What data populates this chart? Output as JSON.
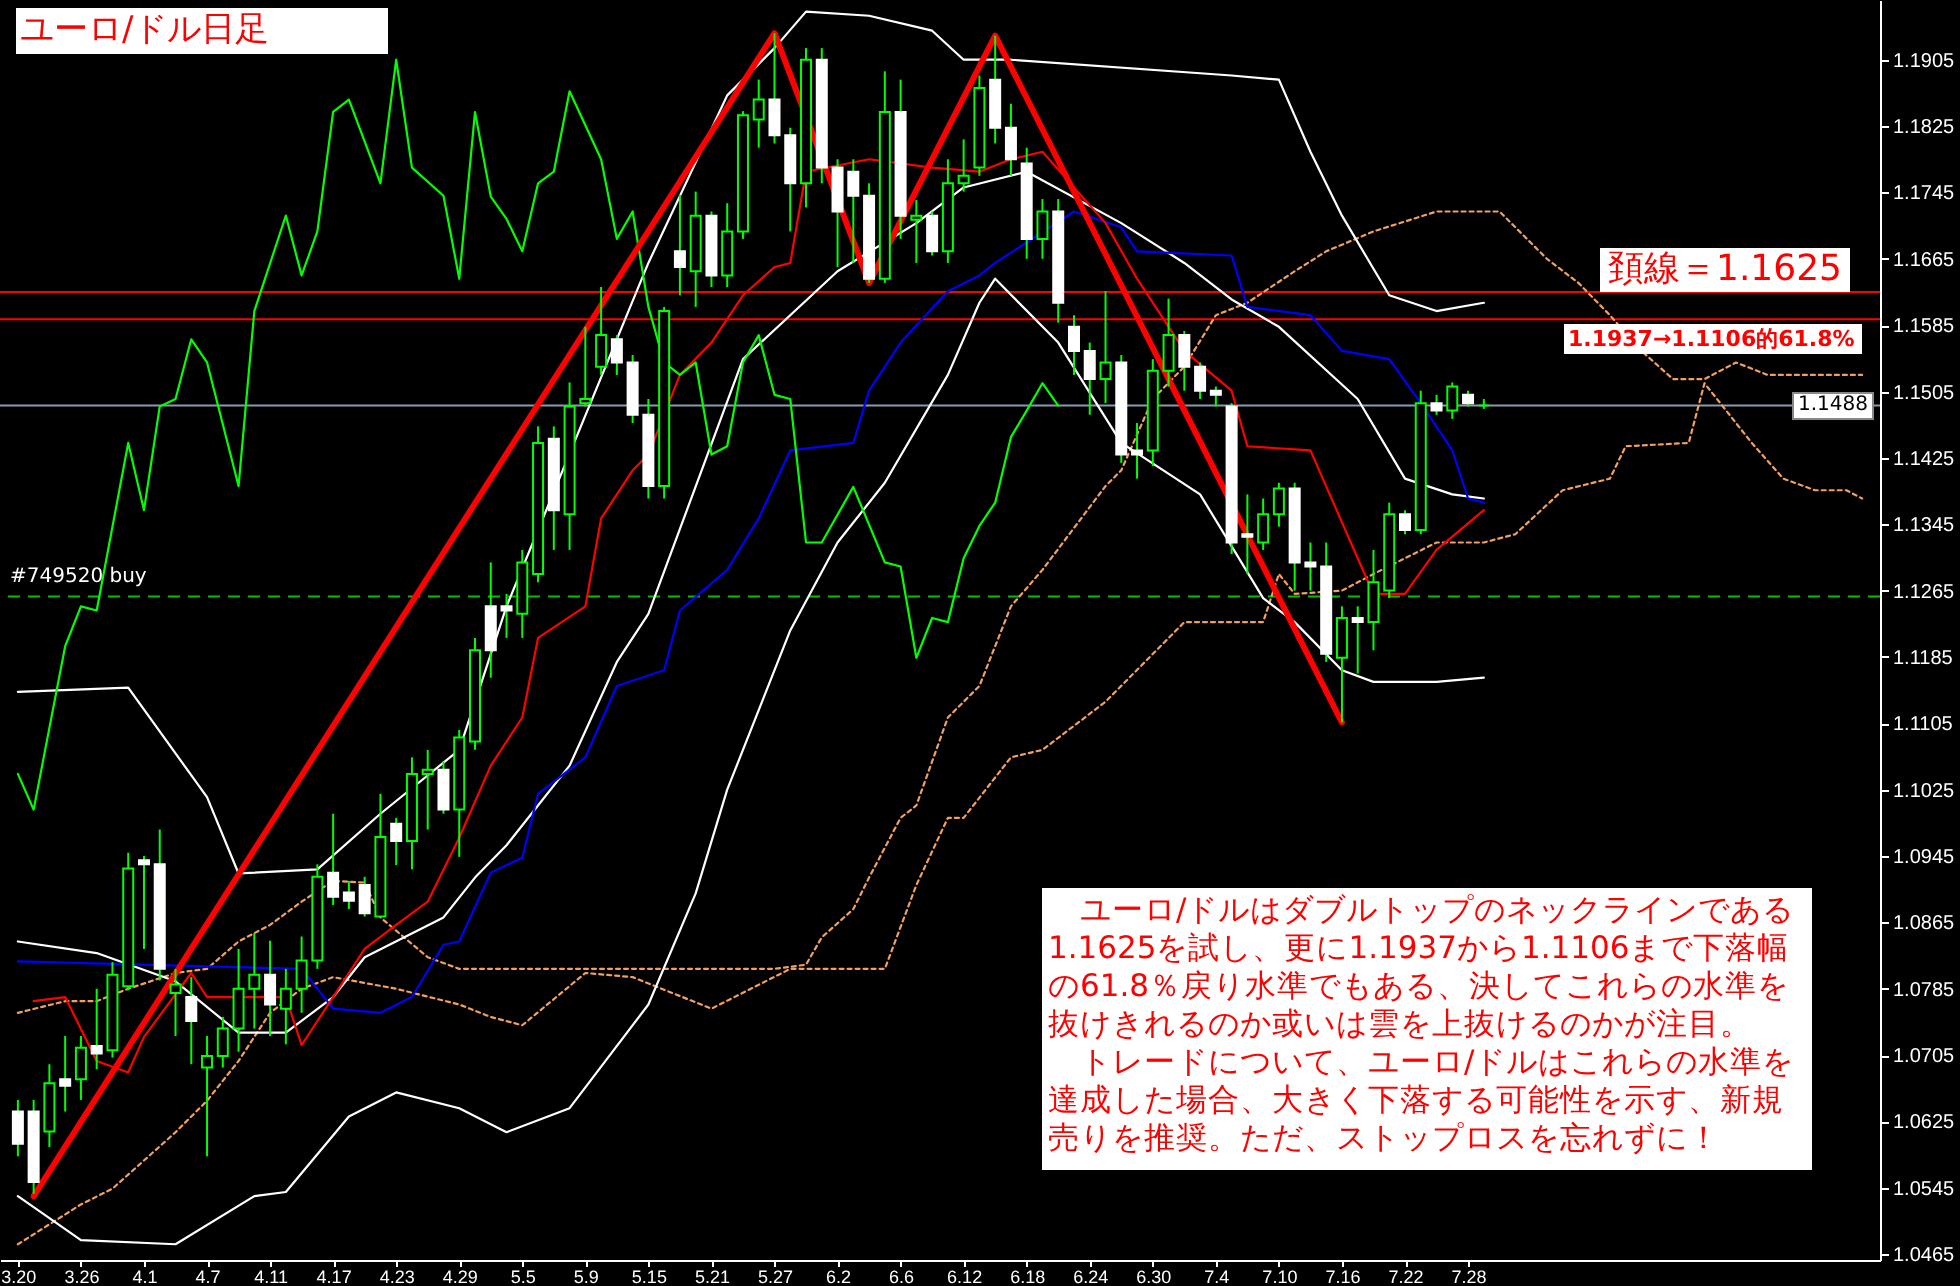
{
  "chart_data": {
    "type": "candlestick",
    "title": "ユーロ/ドル日足",
    "categories": [
      "3.20",
      null,
      null,
      null,
      "3.26",
      null,
      null,
      null,
      "4.1",
      null,
      null,
      null,
      "4.7",
      null,
      null,
      null,
      "4.11",
      null,
      null,
      null,
      "4.17",
      null,
      null,
      null,
      "4.23",
      null,
      null,
      null,
      "4.29",
      null,
      null,
      null,
      "5.5",
      null,
      null,
      null,
      "5.9",
      null,
      null,
      null,
      "5.15",
      null,
      null,
      null,
      "5.21",
      null,
      null,
      null,
      "5.27",
      null,
      null,
      null,
      "6.2",
      null,
      null,
      null,
      "6.6",
      null,
      null,
      null,
      "6.12",
      null,
      null,
      null,
      "6.18",
      null,
      null,
      null,
      "6.24",
      null,
      null,
      null,
      "6.30",
      null,
      null,
      null,
      "7.4",
      null,
      null,
      null,
      "7.10",
      null,
      null,
      null,
      "7.16",
      null,
      null,
      null,
      "7.22",
      null,
      null,
      null,
      "7.28",
      null,
      null,
      null,
      null,
      null,
      null,
      null,
      null,
      null,
      null,
      null,
      null,
      null,
      null,
      null,
      null,
      null,
      null,
      null,
      null,
      null,
      null,
      null,
      null,
      null
    ],
    "ohlc": [
      [
        1.0637,
        1.0651,
        1.0583,
        1.0598
      ],
      [
        1.0637,
        1.0651,
        1.0538,
        1.0552
      ],
      [
        1.0613,
        1.0694,
        1.0594,
        1.0671
      ],
      [
        1.0676,
        1.0728,
        1.0637,
        1.0668
      ],
      [
        1.0676,
        1.0728,
        1.0651,
        1.0714
      ],
      [
        1.0716,
        1.0785,
        1.0688,
        1.0707
      ],
      [
        1.0711,
        1.0817,
        1.0702,
        1.0802
      ],
      [
        1.0788,
        1.0949,
        1.0783,
        1.093
      ],
      [
        1.094,
        1.0945,
        1.0833,
        1.0935
      ],
      [
        1.0935,
        1.0977,
        1.0795,
        1.0809
      ],
      [
        1.078,
        1.0809,
        1.0728,
        1.079
      ],
      [
        1.0775,
        1.0799,
        1.0694,
        1.0746
      ],
      [
        1.069,
        1.0728,
        1.0583,
        1.0704
      ],
      [
        1.0704,
        1.0751,
        1.069,
        1.0737
      ],
      [
        1.0737,
        1.0833,
        1.0709,
        1.0785
      ],
      [
        1.0785,
        1.0852,
        1.0737,
        1.0802
      ],
      [
        1.0802,
        1.0843,
        1.0728,
        1.0766
      ],
      [
        1.0761,
        1.0809,
        1.0718,
        1.0785
      ],
      [
        1.0785,
        1.0848,
        1.0756,
        1.0819
      ],
      [
        1.0819,
        1.0935,
        1.0809,
        1.092
      ],
      [
        1.0925,
        1.0996,
        1.0886,
        1.0896
      ],
      [
        1.0901,
        1.0915,
        1.0881,
        1.0891
      ],
      [
        1.091,
        1.092,
        1.0872,
        1.0876
      ],
      [
        1.0872,
        1.102,
        1.0872,
        1.0968
      ],
      [
        1.0984,
        1.0991,
        1.0934,
        1.0963
      ],
      [
        1.0963,
        1.1064,
        1.0929,
        1.1044
      ],
      [
        1.1044,
        1.1073,
        1.0977,
        1.1049
      ],
      [
        1.1049,
        1.1059,
        1.0996,
        1.1001
      ],
      [
        1.1001,
        1.1097,
        1.0944,
        1.1088
      ],
      [
        1.1083,
        1.1208,
        1.1073,
        1.1193
      ],
      [
        1.1246,
        1.1299,
        1.116,
        1.1193
      ],
      [
        1.1246,
        1.1261,
        1.1208,
        1.1241
      ],
      [
        1.1237,
        1.1314,
        1.1208,
        1.1299
      ],
      [
        1.1285,
        1.1463,
        1.1275,
        1.1443
      ],
      [
        1.1448,
        1.1463,
        1.1314,
        1.1362
      ],
      [
        1.1357,
        1.1516,
        1.1314,
        1.1487
      ],
      [
        1.1491,
        1.1583,
        1.1487,
        1.1496
      ],
      [
        1.1535,
        1.1631,
        1.1525,
        1.1573
      ],
      [
        1.1568,
        1.1573,
        1.1525,
        1.154
      ],
      [
        1.154,
        1.1549,
        1.1467,
        1.1477
      ],
      [
        1.1477,
        1.1496,
        1.1376,
        1.1391
      ],
      [
        1.1391,
        1.1607,
        1.1376,
        1.1602
      ],
      [
        1.1674,
        1.1742,
        1.1621,
        1.1655
      ],
      [
        1.165,
        1.1746,
        1.1607,
        1.1717
      ],
      [
        1.1717,
        1.1722,
        1.1631,
        1.1645
      ],
      [
        1.1645,
        1.1732,
        1.1631,
        1.1698
      ],
      [
        1.1698,
        1.1843,
        1.1689,
        1.1838
      ],
      [
        1.1833,
        1.1881,
        1.1799,
        1.1857
      ],
      [
        1.1857,
        1.1937,
        1.1804,
        1.1814
      ],
      [
        1.1814,
        1.1823,
        1.1698,
        1.1756
      ],
      [
        1.1756,
        1.1919,
        1.1727,
        1.1905
      ],
      [
        1.1905,
        1.1919,
        1.1756,
        1.1775
      ],
      [
        1.1775,
        1.1785,
        1.1655,
        1.1722
      ],
      [
        1.177,
        1.1785,
        1.166,
        1.1741
      ],
      [
        1.1741,
        1.1756,
        1.1636,
        1.1641
      ],
      [
        1.1641,
        1.1891,
        1.1636,
        1.1842
      ],
      [
        1.1842,
        1.1881,
        1.1689,
        1.1717
      ],
      [
        1.1712,
        1.1736,
        1.166,
        1.1717
      ],
      [
        1.1717,
        1.1722,
        1.1669,
        1.1674
      ],
      [
        1.1674,
        1.1785,
        1.166,
        1.1756
      ],
      [
        1.1756,
        1.1809,
        1.1746,
        1.1765
      ],
      [
        1.1775,
        1.1886,
        1.1765,
        1.1871
      ],
      [
        1.1881,
        1.1934,
        1.1804,
        1.1823
      ],
      [
        1.1823,
        1.1852,
        1.1765,
        1.1785
      ],
      [
        1.178,
        1.1799,
        1.1665,
        1.1689
      ],
      [
        1.1689,
        1.1737,
        1.1665,
        1.1722
      ],
      [
        1.1722,
        1.1737,
        1.1588,
        1.1612
      ],
      [
        1.1583,
        1.1597,
        1.1525,
        1.1554
      ],
      [
        1.1554,
        1.1564,
        1.1477,
        1.152
      ],
      [
        1.152,
        1.1626,
        1.1491,
        1.154
      ],
      [
        1.154,
        1.1549,
        1.1419,
        1.1429
      ],
      [
        1.1434,
        1.1467,
        1.14,
        1.1429
      ],
      [
        1.1434,
        1.1544,
        1.1415,
        1.153
      ],
      [
        1.153,
        1.1617,
        1.1511,
        1.1573
      ],
      [
        1.1573,
        1.1578,
        1.1506,
        1.1535
      ],
      [
        1.1535,
        1.154,
        1.1496,
        1.1506
      ],
      [
        1.1506,
        1.1511,
        1.1487,
        1.1501
      ],
      [
        1.1487,
        1.1491,
        1.1309,
        1.1323
      ],
      [
        1.1333,
        1.1381,
        1.1285,
        1.133
      ],
      [
        1.1323,
        1.1376,
        1.1314,
        1.1357
      ],
      [
        1.1357,
        1.1395,
        1.1342,
        1.1388
      ],
      [
        1.1388,
        1.1395,
        1.1265,
        1.1299
      ],
      [
        1.1299,
        1.1323,
        1.1265,
        1.1294
      ],
      [
        1.1294,
        1.1323,
        1.1179,
        1.1189
      ],
      [
        1.1184,
        1.1246,
        1.1106,
        1.1232
      ],
      [
        1.1232,
        1.1246,
        1.1165,
        1.1227
      ],
      [
        1.1227,
        1.1314,
        1.1193,
        1.1275
      ],
      [
        1.1265,
        1.1371,
        1.1256,
        1.1357
      ],
      [
        1.1357,
        1.1362,
        1.1333,
        1.1338
      ],
      [
        1.1338,
        1.1506,
        1.1333,
        1.1491
      ],
      [
        1.1491,
        1.1501,
        1.1477,
        1.1482
      ],
      [
        1.1482,
        1.1516,
        1.1472,
        1.1511
      ],
      [
        1.1501,
        1.1506,
        1.1487,
        1.1491
      ],
      [
        1.1488,
        1.1496,
        1.1484,
        1.1488
      ],
      null,
      null,
      null,
      null,
      null,
      null,
      null,
      null,
      null,
      null,
      null,
      null,
      null,
      null,
      null,
      null,
      null,
      null,
      null,
      null,
      null,
      null,
      null,
      null
    ],
    "series": [
      {
        "type": "line",
        "color": "#f0a060",
        "line_style": "dotted",
        "values": [
          1.0756,
          null,
          null,
          1.077,
          null,
          1.077,
          null,
          1.0785,
          null,
          null,
          1.0804,
          null,
          1.0809,
          null,
          1.0842,
          null,
          1.0862,
          null,
          1.089,
          null,
          1.0915,
          null,
          1.0913,
          1.0871,
          null,
          null,
          1.0823,
          null,
          1.0809,
          null,
          null,
          1.0809,
          null,
          null,
          null,
          null,
          null,
          null,
          null,
          null,
          null,
          null,
          null,
          null,
          null,
          null,
          null,
          null,
          1.0809,
          null,
          1.0814,
          1.0847,
          null,
          1.0881,
          1.0919,
          null,
          1.0991,
          1.1006,
          null,
          1.1112,
          null,
          1.115,
          null,
          1.1246,
          null,
          1.129,
          null,
          null,
          null,
          1.1391,
          1.141,
          null,
          1.1496,
          null,
          1.1535,
          null,
          1.1597,
          null,
          1.1612,
          null,
          null,
          1.165,
          null,
          1.1674,
          null,
          null,
          1.1698,
          null,
          null,
          null,
          1.1722,
          null,
          null,
          null,
          1.1722,
          1.1703,
          null,
          1.1665,
          null,
          1.1636,
          null,
          1.1597,
          null,
          1.1554,
          null,
          1.152,
          null,
          1.152,
          null,
          1.154,
          null,
          1.1525,
          null,
          null,
          null,
          null,
          null,
          1.1525
        ]
      },
      {
        "type": "line",
        "color": "#f0a060",
        "line_style": "dotted",
        "values": [
          1.0477,
          null,
          null,
          null,
          1.0525,
          null,
          1.0544,
          null,
          null,
          null,
          1.0612,
          null,
          1.065,
          null,
          1.0698,
          null,
          1.0756,
          null,
          1.0785,
          null,
          1.0799,
          null,
          null,
          null,
          1.0785,
          null,
          null,
          null,
          1.0766,
          null,
          1.0751,
          null,
          1.0741,
          null,
          null,
          null,
          1.0804,
          null,
          null,
          1.0799,
          null,
          null,
          null,
          null,
          1.0761,
          null,
          null,
          null,
          null,
          1.0809,
          null,
          null,
          null,
          null,
          null,
          1.0809,
          null,
          1.091,
          null,
          1.0991,
          1.0991,
          null,
          null,
          1.1064,
          null,
          1.1073,
          null,
          null,
          null,
          1.1131,
          null,
          null,
          null,
          null,
          1.1227,
          null,
          null,
          null,
          null,
          1.1227,
          1.1285,
          1.1261,
          null,
          null,
          1.1265,
          null,
          1.1285,
          null,
          1.1304,
          null,
          1.1323,
          null,
          null,
          1.1323,
          null,
          1.1333,
          null,
          null,
          1.1386,
          null,
          null,
          1.14,
          1.1439,
          null,
          null,
          null,
          1.1443,
          1.1515,
          null,
          null,
          1.1443,
          null,
          1.14,
          null,
          1.1386,
          null,
          1.1386,
          1.1376
        ]
      },
      {
        "type": "line",
        "color": "#ffffff",
        "values": [
          1.1143,
          null,
          null,
          null,
          null,
          null,
          null,
          1.1148,
          null,
          null,
          null,
          null,
          1.1016,
          null,
          1.0924,
          null,
          null,
          null,
          null,
          1.0929,
          null,
          null,
          null,
          1.0996,
          null,
          null,
          null,
          null,
          1.1073,
          null,
          null,
          1.1246,
          null,
          null,
          null,
          null,
          null,
          null,
          null,
          null,
          1.166,
          null,
          null,
          null,
          null,
          1.1862,
          null,
          null,
          1.1919,
          null,
          1.1963,
          null,
          null,
          null,
          1.1958,
          null,
          null,
          null,
          1.194,
          null,
          1.1905,
          null,
          null,
          1.1905,
          null,
          null,
          null,
          null,
          null,
          null,
          null,
          null,
          null,
          null,
          null,
          null,
          null,
          1.1886,
          null,
          null,
          1.1881,
          null,
          1.1794,
          null,
          1.1717,
          null,
          null,
          1.1621,
          null,
          null,
          1.1602,
          null,
          null,
          1.1612,
          null,
          null,
          null,
          null,
          null,
          null,
          null,
          null,
          null,
          null,
          null,
          null,
          null,
          null,
          null,
          null,
          null,
          null,
          null,
          null,
          null,
          null,
          null,
          null
        ]
      },
      {
        "type": "line",
        "color": "#ffffff",
        "values": [
          1.0842,
          null,
          null,
          null,
          null,
          1.0828,
          null,
          null,
          null,
          null,
          1.0794,
          null,
          null,
          null,
          1.0732,
          null,
          null,
          1.0732,
          null,
          null,
          1.0775,
          null,
          1.0823,
          null,
          null,
          null,
          null,
          1.0871,
          null,
          1.0919,
          null,
          1.0958,
          null,
          null,
          null,
          1.1054,
          null,
          null,
          1.1179,
          null,
          1.1237,
          null,
          null,
          null,
          null,
          null,
          1.1544,
          null,
          null,
          null,
          null,
          null,
          1.165,
          null,
          null,
          null,
          null,
          1.1708,
          null,
          null,
          1.1751,
          null,
          null,
          null,
          1.177,
          null,
          null,
          null,
          null,
          null,
          1.1708,
          null,
          null,
          null,
          1.166,
          null,
          null,
          1.1616,
          null,
          null,
          1.1583,
          null,
          null,
          null,
          null,
          1.1496,
          null,
          null,
          1.14,
          null,
          null,
          1.1381,
          null,
          1.1376,
          null,
          null,
          null,
          null,
          null,
          null,
          null,
          null,
          null,
          null,
          null,
          null,
          null,
          null,
          null,
          null,
          null,
          null,
          null,
          null,
          null,
          null,
          null,
          null
        ]
      },
      {
        "type": "line",
        "color": "#ffffff",
        "values": [
          1.0535,
          null,
          null,
          null,
          1.0482,
          null,
          null,
          null,
          null,
          null,
          1.0477,
          null,
          null,
          null,
          null,
          1.0535,
          null,
          1.054,
          null,
          null,
          null,
          1.0631,
          null,
          null,
          1.066,
          null,
          null,
          null,
          1.0641,
          null,
          null,
          1.0612,
          null,
          null,
          null,
          1.0641,
          null,
          null,
          null,
          null,
          1.0766,
          null,
          null,
          1.09,
          null,
          1.1025,
          null,
          null,
          null,
          1.1217,
          null,
          null,
          1.1323,
          null,
          null,
          1.1395,
          null,
          null,
          null,
          1.1525,
          null,
          1.1612,
          1.1641,
          null,
          null,
          null,
          1.1564,
          null,
          null,
          null,
          1.1443,
          null,
          null,
          null,
          null,
          1.1381,
          null,
          null,
          null,
          1.1256,
          null,
          1.1227,
          null,
          null,
          1.1169,
          null,
          1.1155,
          null,
          null,
          null,
          1.1155,
          null,
          null,
          1.116,
          null,
          null,
          null,
          null,
          null,
          null,
          null,
          null,
          null,
          null,
          null,
          null,
          null,
          null,
          null,
          null,
          null,
          null,
          null,
          null,
          null,
          null,
          null,
          null
        ]
      },
      {
        "type": "line",
        "color": "#0000ff",
        "values": [
          1.0818,
          null,
          null,
          null,
          null,
          null,
          null,
          null,
          null,
          null,
          null,
          null,
          null,
          null,
          null,
          null,
          null,
          null,
          1.0809,
          null,
          1.0761,
          null,
          null,
          1.0756,
          null,
          1.0775,
          null,
          1.0838,
          1.0842,
          null,
          1.0925,
          null,
          1.0943,
          1.102,
          null,
          null,
          1.1064,
          null,
          1.115,
          null,
          null,
          1.1169,
          1.1241,
          null,
          null,
          1.129,
          null,
          1.1352,
          null,
          1.1434,
          null,
          null,
          null,
          1.1443,
          1.1506,
          null,
          1.1564,
          null,
          null,
          1.1626,
          null,
          1.1645,
          1.166,
          null,
          null,
          null,
          null,
          1.1722,
          null,
          null,
          1.1703,
          1.1674,
          null,
          null,
          null,
          null,
          null,
          1.1669,
          1.1607,
          null,
          null,
          null,
          1.1597,
          null,
          1.1554,
          null,
          null,
          1.1544,
          null,
          1.1491,
          null,
          1.1434,
          1.1376,
          1.1371,
          null,
          null,
          null,
          null,
          null,
          null,
          null,
          null,
          null,
          null,
          null,
          null,
          null,
          null,
          null,
          null,
          null,
          null,
          null,
          null,
          null,
          null,
          null,
          null
        ]
      },
      {
        "type": "line",
        "color": "#ff0000",
        "values": [
          null,
          1.077,
          null,
          1.0775,
          null,
          1.0698,
          null,
          1.0684,
          1.0727,
          null,
          null,
          1.0804,
          1.0775,
          null,
          null,
          null,
          null,
          1.0775,
          1.0717,
          null,
          1.0775,
          null,
          1.0833,
          null,
          1.0862,
          null,
          1.089,
          null,
          1.0967,
          null,
          1.1054,
          1.1083,
          1.1112,
          1.1208,
          null,
          null,
          1.1246,
          1.1352,
          null,
          1.141,
          1.1429,
          null,
          1.1525,
          null,
          1.1564,
          null,
          1.1621,
          null,
          1.1655,
          1.166,
          1.177,
          null,
          null,
          null,
          1.1785,
          null,
          null,
          null,
          1.1775,
          null,
          null,
          1.177,
          null,
          1.1785,
          null,
          1.1794,
          null,
          null,
          null,
          1.1708,
          null,
          1.1641,
          null,
          null,
          1.1554,
          null,
          null,
          1.1506,
          1.1439,
          null,
          null,
          null,
          1.1434,
          null,
          null,
          1.1304,
          1.1261,
          null,
          1.1261,
          null,
          1.1314,
          null,
          null,
          1.1362,
          null,
          null,
          null,
          null,
          null,
          null,
          null,
          null,
          null,
          null,
          null,
          null,
          null,
          null,
          null,
          null,
          null,
          null,
          null,
          null,
          null,
          null,
          null,
          null
        ]
      },
      {
        "type": "line",
        "color": "#00ff00",
        "values": [
          1.1044,
          1.1001,
          null,
          1.1198,
          1.1246,
          1.1241,
          null,
          1.1443,
          1.1362,
          1.1487,
          1.1496,
          1.1568,
          1.154,
          null,
          1.1391,
          1.1602,
          null,
          1.1717,
          1.1645,
          1.1698,
          1.1842,
          1.1857,
          null,
          1.1756,
          1.1905,
          1.1775,
          null,
          1.1741,
          1.1641,
          1.1842,
          1.174,
          1.1713,
          1.1674,
          1.1756,
          1.177,
          1.1867,
          null,
          1.1785,
          1.1689,
          1.1722,
          1.1607,
          1.154,
          1.1525,
          1.154,
          1.1429,
          1.1439,
          1.154,
          1.1573,
          1.1501,
          1.1496,
          1.1323,
          1.1323,
          null,
          1.139,
          null,
          1.1299,
          1.1294,
          1.1184,
          1.1232,
          1.1227,
          1.1304,
          1.1343,
          1.1371,
          1.145,
          1.1482,
          1.1515,
          1.1488,
          null,
          null,
          null,
          null,
          null,
          null,
          null,
          null,
          null,
          null,
          null,
          null,
          null,
          null,
          null,
          null,
          null,
          null,
          null,
          null,
          null,
          null,
          null,
          null,
          null,
          null,
          null,
          null,
          null,
          null,
          null,
          null,
          null,
          null,
          null,
          null,
          null,
          null,
          null,
          null,
          null,
          null,
          null,
          null,
          null,
          null,
          null,
          null,
          null,
          null,
          null
        ]
      },
      {
        "type": "line",
        "color": "#ff0000",
        "line_style": "solid",
        "values": [
          null,
          1.0535,
          null,
          null,
          null,
          null,
          null,
          null,
          null,
          null,
          null,
          null,
          null,
          null,
          null,
          null,
          null,
          null,
          null,
          null,
          null,
          null,
          null,
          null,
          null,
          null,
          null,
          null,
          null,
          null,
          null,
          null,
          null,
          null,
          null,
          null,
          null,
          null,
          null,
          null,
          null,
          null,
          null,
          null,
          null,
          null,
          null,
          null,
          1.1937,
          null,
          null,
          null,
          null,
          null,
          1.1636,
          null,
          null,
          null,
          null,
          null,
          null,
          null,
          1.1934,
          null,
          null,
          null,
          null,
          null,
          null,
          null,
          null,
          null,
          null,
          null,
          null,
          null,
          null,
          null,
          null,
          null,
          null,
          null,
          null,
          null,
          1.1106,
          null,
          null,
          null,
          null,
          null,
          null,
          null,
          null,
          null,
          null,
          null,
          null,
          null,
          null,
          null,
          null,
          null,
          null,
          null,
          null,
          null,
          null,
          null,
          null,
          null,
          null,
          null,
          null,
          null,
          null,
          null,
          null,
          null
        ]
      }
    ],
    "ylim": [
      1.0458,
      1.1977
    ],
    "yticks": [
      1.0465,
      1.0545,
      1.0625,
      1.0705,
      1.0785,
      1.0865,
      1.0945,
      1.1025,
      1.1105,
      1.1185,
      1.1265,
      1.1345,
      1.1425,
      1.1505,
      1.1585,
      1.1665,
      1.1745,
      1.1825,
      1.1905
    ],
    "ref_lines": [
      {
        "axis": "y",
        "value": 1.1625,
        "label": "頚線＝1.1625",
        "color": "#ff0000"
      },
      {
        "axis": "y",
        "value": 1.1592,
        "label": "1.1937→1.1106的61.8%",
        "color": "#ff0000"
      },
      {
        "axis": "y",
        "value": 1.1488,
        "label": "1.1488",
        "color": "#8a9bb0"
      },
      {
        "axis": "y",
        "value": 1.1258,
        "label": "#749520 buy",
        "color": "#00c000",
        "line_style": "dashed"
      }
    ],
    "annotations": [
      "　ユーロ/ドルはダブルトップのネックラインである1.1625を試し、更に1.1937から1.1106まで下落幅の61.8％戻り水準でもある、決してこれらの水準を抜けきれるのか或いは雲を上抜けるのかが注目。",
      "　トレードについて、ユーロ/ドルはこれらの水準を達成した場合、大きく下落する可能性を示す、新規売りを推奨。ただ、ストップロスを忘れずに！"
    ]
  }
}
